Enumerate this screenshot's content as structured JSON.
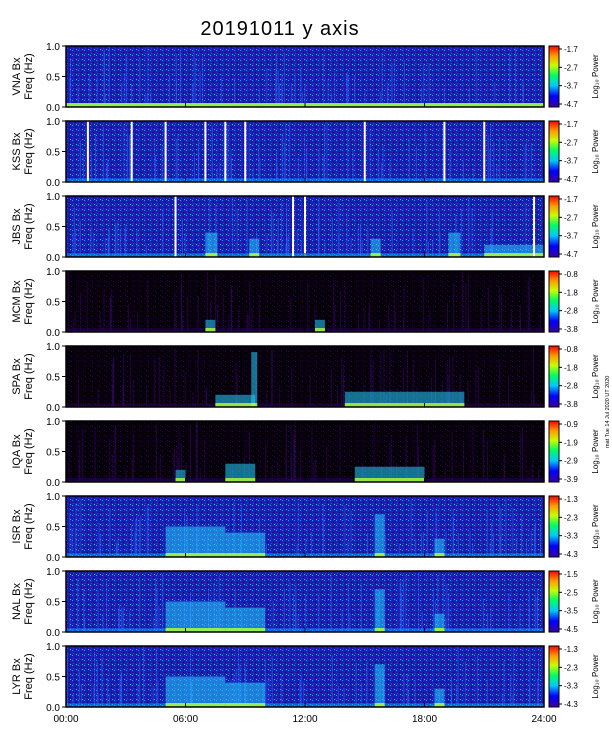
{
  "title": "20191011 y axis",
  "side_stamp": "mat Tue 14 Jul 2020 UT 2020",
  "colors": {
    "background_dark": "#000000",
    "background_blue": "#1a1aa0",
    "frame": "#000000",
    "gap_line": "#ffffff"
  },
  "chart_data": [
    {
      "type": "heatmap",
      "station": "VNA",
      "ylabel_line1": "VNA Bx",
      "ylabel_line2": "Freq (Hz)",
      "cbar_label": "Log₁₀ Power",
      "cbar_ticks": [
        "-1.7",
        "-2.7",
        "-3.7",
        "-4.7"
      ],
      "ylim": [
        0,
        1.0
      ],
      "yticks": [
        "0.0",
        "0.5",
        "1.0"
      ],
      "xlim": [
        0,
        24
      ],
      "bg": "blue",
      "activity": [
        [
          0,
          24,
          0.06
        ]
      ],
      "gaps": []
    },
    {
      "type": "heatmap",
      "station": "KSS",
      "ylabel_line1": "KSS Bx",
      "ylabel_line2": "Freq (Hz)",
      "cbar_label": "Log₁₀ Power",
      "cbar_ticks": [
        "-1.7",
        "-2.7",
        "-3.7",
        "-4.7"
      ],
      "ylim": [
        0,
        1.0
      ],
      "yticks": [
        "0.0",
        "0.5",
        "1.0"
      ],
      "xlim": [
        0,
        24
      ],
      "bg": "blue",
      "activity": [],
      "gaps": [
        1.1,
        3.3,
        5.0,
        7.0,
        8.0,
        9.0,
        15.0,
        19.0,
        21.0
      ]
    },
    {
      "type": "heatmap",
      "station": "JBS",
      "ylabel_line1": "JBS Bx",
      "ylabel_line2": "Freq (Hz)",
      "cbar_label": "Log₁₀ Power",
      "cbar_ticks": [
        "-1.7",
        "-2.7",
        "-3.7",
        "-4.7"
      ],
      "ylim": [
        0,
        1.0
      ],
      "yticks": [
        "0.0",
        "0.5",
        "1.0"
      ],
      "xlim": [
        0,
        24
      ],
      "bg": "blue",
      "activity": [
        [
          7.0,
          7.6,
          0.4
        ],
        [
          9.2,
          9.7,
          0.3
        ],
        [
          15.3,
          15.8,
          0.3
        ],
        [
          19.2,
          19.8,
          0.4
        ],
        [
          21.0,
          24.0,
          0.2
        ]
      ],
      "gaps": [
        5.5,
        11.4,
        12.0,
        23.5
      ]
    },
    {
      "type": "heatmap",
      "station": "MCM",
      "ylabel_line1": "MCM Bx",
      "ylabel_line2": "Freq (Hz)",
      "cbar_label": "Log₁₀ Power",
      "cbar_ticks": [
        "-0.8",
        "-1.8",
        "-2.8",
        "-3.8"
      ],
      "ylim": [
        0,
        1.0
      ],
      "yticks": [
        "0.0",
        "0.5",
        "1.0"
      ],
      "xlim": [
        0,
        24
      ],
      "bg": "dark",
      "activity": [
        [
          7.0,
          7.5,
          0.2
        ],
        [
          12.5,
          13.0,
          0.2
        ]
      ],
      "gaps": []
    },
    {
      "type": "heatmap",
      "station": "SPA",
      "ylabel_line1": "SPA Bx",
      "ylabel_line2": "Freq (Hz)",
      "cbar_label": "Log₁₀ Power",
      "cbar_ticks": [
        "-0.8",
        "-1.8",
        "-2.8",
        "-3.8"
      ],
      "ylim": [
        0,
        1.0
      ],
      "yticks": [
        "0.0",
        "0.5",
        "1.0"
      ],
      "xlim": [
        0,
        24
      ],
      "bg": "dark",
      "activity": [
        [
          7.5,
          9.5,
          0.2
        ],
        [
          9.3,
          9.6,
          0.9
        ],
        [
          14.0,
          20.0,
          0.25
        ]
      ],
      "gaps": []
    },
    {
      "type": "heatmap",
      "station": "IQA",
      "ylabel_line1": "IQA Bx",
      "ylabel_line2": "Freq (Hz)",
      "cbar_label": "Log₁₀ Power",
      "cbar_ticks": [
        "-0.9",
        "-1.9",
        "-2.9",
        "-3.9"
      ],
      "ylim": [
        0,
        1.0
      ],
      "yticks": [
        "0.0",
        "0.5",
        "1.0"
      ],
      "xlim": [
        0,
        24
      ],
      "bg": "dark",
      "activity": [
        [
          8.0,
          9.5,
          0.3
        ],
        [
          5.5,
          6.0,
          0.2
        ],
        [
          14.5,
          18.0,
          0.25
        ]
      ],
      "gaps": []
    },
    {
      "type": "heatmap",
      "station": "ISR",
      "ylabel_line1": "ISR Bx",
      "ylabel_line2": "Freq (Hz)",
      "cbar_label": "Log₁₀ Power",
      "cbar_ticks": [
        "-1.3",
        "-2.3",
        "-3.3",
        "-4.3"
      ],
      "ylim": [
        0,
        1.0
      ],
      "yticks": [
        "0.0",
        "0.5",
        "1.0"
      ],
      "xlim": [
        0,
        24
      ],
      "bg": "blue",
      "activity": [
        [
          5.0,
          8.0,
          0.5
        ],
        [
          8.0,
          10.0,
          0.4
        ],
        [
          15.5,
          16.0,
          0.7
        ],
        [
          18.5,
          19.0,
          0.3
        ]
      ],
      "gaps": []
    },
    {
      "type": "heatmap",
      "station": "NAL",
      "ylabel_line1": "NAL Bx",
      "ylabel_line2": "Freq (Hz)",
      "cbar_label": "Log₁₀ Power",
      "cbar_ticks": [
        "-1.5",
        "-2.5",
        "-3.5",
        "-4.5"
      ],
      "ylim": [
        0,
        1.0
      ],
      "yticks": [
        "0.0",
        "0.5",
        "1.0"
      ],
      "xlim": [
        0,
        24
      ],
      "bg": "blue",
      "activity": [
        [
          5.0,
          8.0,
          0.5
        ],
        [
          8.0,
          10.0,
          0.4
        ],
        [
          15.5,
          16.0,
          0.7
        ],
        [
          18.5,
          19.0,
          0.3
        ]
      ],
      "gaps": []
    },
    {
      "type": "heatmap",
      "station": "LYR",
      "ylabel_line1": "LYR Bx",
      "ylabel_line2": "Freq (Hz)",
      "cbar_label": "Log₁₀ Power",
      "cbar_ticks": [
        "-1.3",
        "-2.3",
        "-3.3",
        "-4.3"
      ],
      "ylim": [
        0,
        1.0
      ],
      "yticks": [
        "0.0",
        "0.5",
        "1.0"
      ],
      "xlim": [
        0,
        24
      ],
      "bg": "blue",
      "activity": [
        [
          5.0,
          8.0,
          0.5
        ],
        [
          8.0,
          10.0,
          0.4
        ],
        [
          15.5,
          16.0,
          0.7
        ],
        [
          18.5,
          19.0,
          0.3
        ]
      ],
      "gaps": []
    }
  ],
  "xaxis": {
    "ticks": [
      "00:00",
      "06:00",
      "12:00",
      "18:00",
      "24:00"
    ],
    "tick_values": [
      0,
      6,
      12,
      18,
      24
    ]
  }
}
